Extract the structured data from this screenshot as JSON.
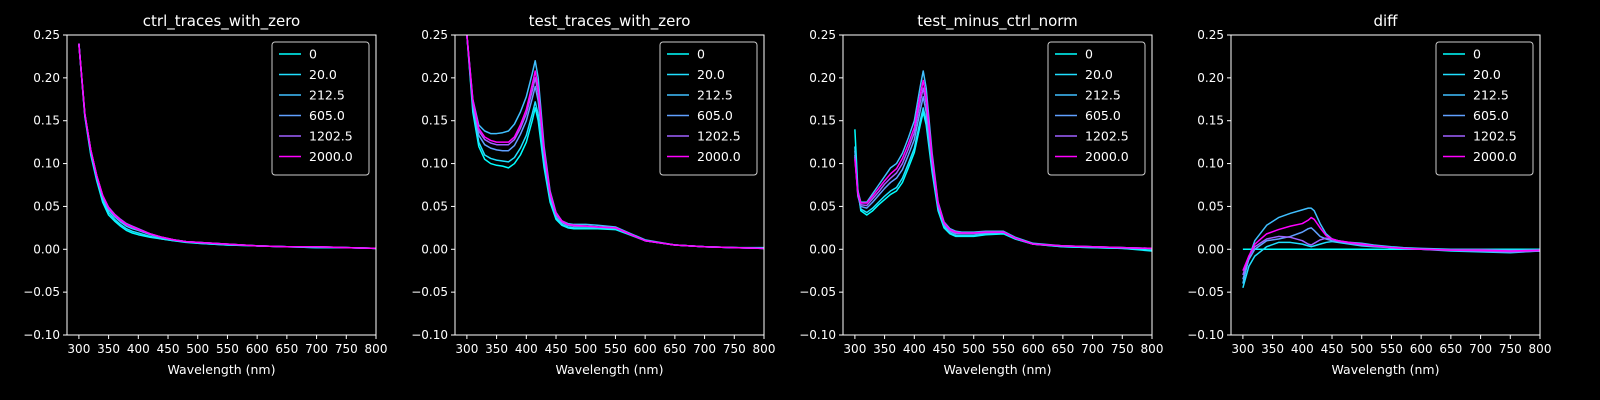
{
  "chart_data": [
    {
      "type": "line",
      "title": "ctrl_traces_with_zero",
      "xlabel": "Wavelength (nm)",
      "ylabel": "",
      "xlim": [
        280,
        800
      ],
      "ylim": [
        -0.1,
        0.25
      ],
      "xticks": [
        "300",
        "350",
        "400",
        "450",
        "500",
        "550",
        "600",
        "650",
        "700",
        "750",
        "800"
      ],
      "yticks": [
        "−0.10",
        "−0.05",
        "0.00",
        "0.05",
        "0.10",
        "0.15",
        "0.20",
        "0.25"
      ],
      "legend_position": "top-right",
      "x": [
        300,
        310,
        320,
        330,
        340,
        350,
        360,
        370,
        380,
        390,
        400,
        420,
        440,
        460,
        480,
        500,
        550,
        600,
        650,
        700,
        750,
        800
      ],
      "series": [
        {
          "name": "0",
          "color": "#00ffff",
          "values": [
            0.24,
            0.155,
            0.11,
            0.08,
            0.055,
            0.04,
            0.033,
            0.027,
            0.022,
            0.019,
            0.017,
            0.014,
            0.012,
            0.01,
            0.008,
            0.007,
            0.005,
            0.004,
            0.003,
            0.002,
            0.002,
            0.001
          ]
        },
        {
          "name": "20.0",
          "color": "#20dfff",
          "values": [
            0.24,
            0.156,
            0.112,
            0.082,
            0.058,
            0.043,
            0.035,
            0.029,
            0.024,
            0.021,
            0.019,
            0.015,
            0.012,
            0.01,
            0.009,
            0.007,
            0.005,
            0.004,
            0.003,
            0.002,
            0.002,
            0.001
          ]
        },
        {
          "name": "212.5",
          "color": "#40bfff",
          "values": [
            0.24,
            0.157,
            0.114,
            0.084,
            0.06,
            0.046,
            0.038,
            0.032,
            0.027,
            0.024,
            0.022,
            0.017,
            0.013,
            0.011,
            0.009,
            0.008,
            0.006,
            0.004,
            0.003,
            0.003,
            0.002,
            0.001
          ]
        },
        {
          "name": "605.0",
          "color": "#60a0ff",
          "values": [
            0.24,
            0.158,
            0.116,
            0.086,
            0.062,
            0.048,
            0.04,
            0.034,
            0.029,
            0.026,
            0.023,
            0.018,
            0.014,
            0.011,
            0.009,
            0.008,
            0.006,
            0.004,
            0.003,
            0.003,
            0.002,
            0.001
          ]
        },
        {
          "name": "1202.5",
          "color": "#9f60ff",
          "values": [
            0.24,
            0.158,
            0.116,
            0.086,
            0.063,
            0.049,
            0.041,
            0.035,
            0.03,
            0.027,
            0.024,
            0.018,
            0.014,
            0.011,
            0.009,
            0.008,
            0.006,
            0.004,
            0.003,
            0.003,
            0.002,
            0.001
          ]
        },
        {
          "name": "2000.0",
          "color": "#ff00ff",
          "values": [
            0.24,
            0.158,
            0.116,
            0.086,
            0.063,
            0.048,
            0.04,
            0.034,
            0.029,
            0.026,
            0.023,
            0.018,
            0.014,
            0.011,
            0.009,
            0.008,
            0.006,
            0.004,
            0.003,
            0.003,
            0.002,
            0.001
          ]
        }
      ]
    },
    {
      "type": "line",
      "title": "test_traces_with_zero",
      "xlabel": "Wavelength (nm)",
      "ylabel": "",
      "xlim": [
        280,
        800
      ],
      "ylim": [
        -0.1,
        0.25
      ],
      "xticks": [
        "300",
        "350",
        "400",
        "450",
        "500",
        "550",
        "600",
        "650",
        "700",
        "750",
        "800"
      ],
      "yticks": [
        "−0.10",
        "−0.05",
        "0.00",
        "0.05",
        "0.10",
        "0.15",
        "0.20",
        "0.25"
      ],
      "legend_position": "top-right",
      "x": [
        300,
        310,
        320,
        330,
        340,
        350,
        360,
        370,
        380,
        390,
        400,
        410,
        415,
        420,
        430,
        440,
        450,
        460,
        470,
        480,
        500,
        520,
        550,
        570,
        600,
        650,
        700,
        750,
        800
      ],
      "series": [
        {
          "name": "0",
          "color": "#00ffff",
          "values": [
            0.25,
            0.16,
            0.12,
            0.105,
            0.1,
            0.098,
            0.097,
            0.095,
            0.1,
            0.11,
            0.125,
            0.15,
            0.165,
            0.15,
            0.095,
            0.055,
            0.035,
            0.028,
            0.025,
            0.024,
            0.024,
            0.024,
            0.023,
            0.018,
            0.01,
            0.005,
            0.003,
            0.002,
            0.002
          ]
        },
        {
          "name": "20.0",
          "color": "#20dfff",
          "values": [
            0.25,
            0.165,
            0.125,
            0.11,
            0.106,
            0.104,
            0.103,
            0.102,
            0.107,
            0.118,
            0.133,
            0.158,
            0.172,
            0.157,
            0.1,
            0.058,
            0.037,
            0.029,
            0.026,
            0.025,
            0.025,
            0.025,
            0.024,
            0.019,
            0.01,
            0.005,
            0.003,
            0.002,
            0.001
          ]
        },
        {
          "name": "212.5",
          "color": "#40bfff",
          "values": [
            0.25,
            0.175,
            0.145,
            0.138,
            0.135,
            0.135,
            0.136,
            0.138,
            0.146,
            0.16,
            0.178,
            0.205,
            0.22,
            0.2,
            0.12,
            0.068,
            0.043,
            0.033,
            0.03,
            0.029,
            0.029,
            0.028,
            0.026,
            0.02,
            0.011,
            0.005,
            0.003,
            0.002,
            0.001
          ]
        },
        {
          "name": "605.0",
          "color": "#60a0ff",
          "values": [
            0.25,
            0.168,
            0.133,
            0.122,
            0.118,
            0.116,
            0.115,
            0.115,
            0.121,
            0.134,
            0.15,
            0.176,
            0.19,
            0.173,
            0.108,
            0.062,
            0.04,
            0.031,
            0.028,
            0.027,
            0.027,
            0.026,
            0.025,
            0.019,
            0.01,
            0.005,
            0.003,
            0.002,
            0.001
          ]
        },
        {
          "name": "1202.5",
          "color": "#9f60ff",
          "values": [
            0.25,
            0.172,
            0.138,
            0.128,
            0.124,
            0.122,
            0.122,
            0.122,
            0.128,
            0.141,
            0.158,
            0.185,
            0.2,
            0.182,
            0.112,
            0.064,
            0.041,
            0.032,
            0.029,
            0.027,
            0.027,
            0.026,
            0.025,
            0.019,
            0.01,
            0.005,
            0.003,
            0.002,
            0.001
          ]
        },
        {
          "name": "2000.0",
          "color": "#ff00ff",
          "values": [
            0.25,
            0.174,
            0.141,
            0.131,
            0.127,
            0.125,
            0.125,
            0.125,
            0.131,
            0.145,
            0.163,
            0.192,
            0.208,
            0.188,
            0.115,
            0.066,
            0.042,
            0.033,
            0.029,
            0.028,
            0.027,
            0.026,
            0.025,
            0.019,
            0.01,
            0.005,
            0.003,
            0.002,
            0.001
          ]
        }
      ]
    },
    {
      "type": "line",
      "title": "test_minus_ctrl_norm",
      "xlabel": "Wavelength (nm)",
      "ylabel": "",
      "xlim": [
        280,
        800
      ],
      "ylim": [
        -0.1,
        0.25
      ],
      "xticks": [
        "300",
        "350",
        "400",
        "450",
        "500",
        "550",
        "600",
        "650",
        "700",
        "750",
        "800"
      ],
      "yticks": [
        "−0.10",
        "−0.05",
        "0.00",
        "0.05",
        "0.10",
        "0.15",
        "0.20",
        "0.25"
      ],
      "legend_position": "top-right",
      "x": [
        300,
        305,
        310,
        320,
        330,
        340,
        350,
        360,
        370,
        380,
        390,
        400,
        410,
        415,
        420,
        430,
        440,
        450,
        460,
        470,
        480,
        500,
        520,
        550,
        570,
        600,
        650,
        700,
        750,
        800
      ],
      "series": [
        {
          "name": "0",
          "color": "#00ffff",
          "values": [
            0.14,
            0.07,
            0.045,
            0.04,
            0.045,
            0.052,
            0.058,
            0.064,
            0.068,
            0.078,
            0.095,
            0.113,
            0.145,
            0.16,
            0.145,
            0.09,
            0.045,
            0.025,
            0.018,
            0.015,
            0.015,
            0.015,
            0.017,
            0.018,
            0.012,
            0.006,
            0.003,
            0.002,
            0.001,
            -0.002
          ]
        },
        {
          "name": "20.0",
          "color": "#20dfff",
          "values": [
            0.12,
            0.065,
            0.047,
            0.043,
            0.048,
            0.055,
            0.062,
            0.068,
            0.072,
            0.083,
            0.1,
            0.118,
            0.15,
            0.165,
            0.15,
            0.093,
            0.047,
            0.027,
            0.019,
            0.016,
            0.016,
            0.016,
            0.018,
            0.019,
            0.012,
            0.006,
            0.003,
            0.002,
            0.001,
            -0.001
          ]
        },
        {
          "name": "212.5",
          "color": "#40bfff",
          "values": [
            0.115,
            0.068,
            0.055,
            0.055,
            0.065,
            0.075,
            0.085,
            0.095,
            0.1,
            0.112,
            0.13,
            0.15,
            0.19,
            0.208,
            0.188,
            0.112,
            0.055,
            0.032,
            0.024,
            0.021,
            0.02,
            0.02,
            0.021,
            0.021,
            0.014,
            0.007,
            0.004,
            0.003,
            0.002,
            0.001
          ]
        },
        {
          "name": "605.0",
          "color": "#60a0ff",
          "values": [
            0.11,
            0.062,
            0.05,
            0.048,
            0.055,
            0.063,
            0.071,
            0.078,
            0.083,
            0.093,
            0.11,
            0.128,
            0.162,
            0.178,
            0.16,
            0.098,
            0.05,
            0.029,
            0.021,
            0.018,
            0.018,
            0.018,
            0.019,
            0.02,
            0.013,
            0.006,
            0.004,
            0.003,
            0.002,
            0.001
          ]
        },
        {
          "name": "1202.5",
          "color": "#9f60ff",
          "values": [
            0.108,
            0.064,
            0.052,
            0.051,
            0.059,
            0.067,
            0.076,
            0.083,
            0.089,
            0.1,
            0.117,
            0.136,
            0.172,
            0.188,
            0.17,
            0.103,
            0.052,
            0.03,
            0.022,
            0.019,
            0.019,
            0.019,
            0.02,
            0.02,
            0.013,
            0.006,
            0.004,
            0.003,
            0.002,
            0.001
          ]
        },
        {
          "name": "2000.0",
          "color": "#ff00ff",
          "values": [
            0.105,
            0.066,
            0.054,
            0.054,
            0.062,
            0.071,
            0.08,
            0.088,
            0.094,
            0.106,
            0.123,
            0.142,
            0.18,
            0.197,
            0.178,
            0.107,
            0.054,
            0.031,
            0.023,
            0.02,
            0.019,
            0.019,
            0.02,
            0.02,
            0.013,
            0.006,
            0.004,
            0.003,
            0.002,
            0.001
          ]
        }
      ]
    },
    {
      "type": "line",
      "title": "diff",
      "xlabel": "Wavelength (nm)",
      "ylabel": "",
      "xlim": [
        280,
        800
      ],
      "ylim": [
        -0.1,
        0.25
      ],
      "xticks": [
        "300",
        "350",
        "400",
        "450",
        "500",
        "550",
        "600",
        "650",
        "700",
        "750",
        "800"
      ],
      "yticks": [
        "−0.10",
        "−0.05",
        "0.00",
        "0.05",
        "0.10",
        "0.15",
        "0.20",
        "0.25"
      ],
      "legend_position": "top-right",
      "x": [
        300,
        310,
        320,
        340,
        360,
        380,
        400,
        410,
        415,
        420,
        430,
        440,
        450,
        460,
        480,
        500,
        520,
        550,
        570,
        600,
        650,
        700,
        750,
        800
      ],
      "series": [
        {
          "name": "0",
          "color": "#00ffff",
          "values": [
            0.0,
            0.0,
            0.0,
            0.0,
            0.0,
            0.0,
            0.0,
            0.0,
            0.0,
            0.0,
            0.0,
            0.0,
            0.0,
            0.0,
            0.0,
            0.0,
            0.0,
            0.0,
            0.0,
            0.0,
            0.0,
            0.0,
            0.0,
            0.0
          ]
        },
        {
          "name": "20.0",
          "color": "#20dfff",
          "values": [
            -0.045,
            -0.02,
            -0.008,
            0.003,
            0.008,
            0.008,
            0.006,
            0.004,
            0.003,
            0.004,
            0.006,
            0.008,
            0.009,
            0.008,
            0.006,
            0.004,
            0.003,
            0.002,
            0.001,
            0.0,
            -0.002,
            -0.003,
            -0.004,
            -0.002
          ]
        },
        {
          "name": "212.5",
          "color": "#40bfff",
          "values": [
            -0.04,
            -0.01,
            0.01,
            0.028,
            0.037,
            0.042,
            0.046,
            0.048,
            0.048,
            0.045,
            0.03,
            0.018,
            0.012,
            0.01,
            0.008,
            0.007,
            0.005,
            0.003,
            0.002,
            0.001,
            0.0,
            0.0,
            -0.001,
            -0.001
          ]
        },
        {
          "name": "605.0",
          "color": "#60a0ff",
          "values": [
            -0.035,
            -0.012,
            0.0,
            0.01,
            0.012,
            0.015,
            0.02,
            0.024,
            0.025,
            0.022,
            0.015,
            0.012,
            0.01,
            0.009,
            0.007,
            0.005,
            0.004,
            0.002,
            0.001,
            0.0,
            -0.001,
            -0.002,
            -0.003,
            -0.002
          ]
        },
        {
          "name": "1202.5",
          "color": "#9f60ff",
          "values": [
            -0.03,
            -0.008,
            0.003,
            0.012,
            0.015,
            0.014,
            0.01,
            0.006,
            0.005,
            0.007,
            0.011,
            0.013,
            0.012,
            0.01,
            0.007,
            0.005,
            0.004,
            0.002,
            0.001,
            0.0,
            -0.001,
            -0.002,
            -0.003,
            -0.002
          ]
        },
        {
          "name": "2000.0",
          "color": "#ff00ff",
          "values": [
            -0.025,
            -0.008,
            0.006,
            0.018,
            0.023,
            0.027,
            0.03,
            0.034,
            0.037,
            0.035,
            0.025,
            0.016,
            0.012,
            0.01,
            0.008,
            0.006,
            0.004,
            0.002,
            0.001,
            0.0,
            -0.001,
            -0.001,
            -0.002,
            -0.001
          ]
        }
      ]
    }
  ]
}
